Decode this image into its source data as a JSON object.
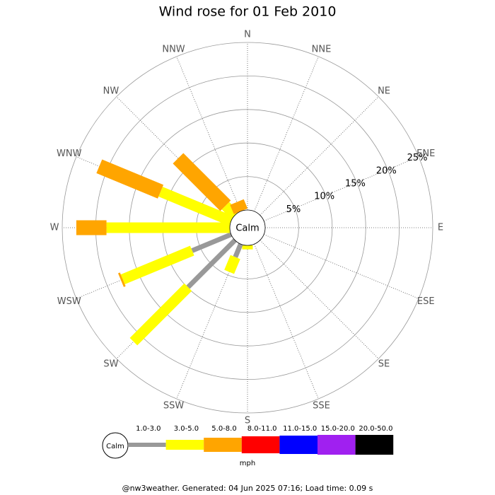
{
  "chart_data": {
    "type": "windrose",
    "title": "Wind rose for 01 Feb 2010",
    "categories": [
      "N",
      "NNE",
      "NE",
      "ENE",
      "E",
      "ESE",
      "SE",
      "SSE",
      "S",
      "SSW",
      "SW",
      "WSW",
      "W",
      "WNW",
      "NW",
      "NNW"
    ],
    "series": [
      {
        "name": "1.0-3.0",
        "color": "#999999",
        "values": [
          0,
          0,
          0,
          0,
          0,
          0,
          0,
          0,
          0,
          2.1,
          9.9,
          6.3,
          0,
          0,
          0,
          0
        ]
      },
      {
        "name": "3.0-5.0",
        "color": "#ffff00",
        "values": [
          0,
          0,
          0,
          0,
          0,
          0,
          0,
          0,
          0.6,
          2.4,
          11.5,
          11.2,
          18.4,
          11.4,
          2,
          0
        ]
      },
      {
        "name": "5.0-8.0",
        "color": "#ffa500",
        "values": [
          0,
          0,
          0,
          0,
          0,
          0,
          0,
          0,
          0,
          0,
          0,
          0.3,
          4.5,
          9.9,
          10,
          1.5
        ]
      },
      {
        "name": "8.0-11.0",
        "color": "#ff0000",
        "values": [
          0,
          0,
          0,
          0,
          0,
          0,
          0,
          0,
          0,
          0,
          0,
          0,
          0,
          0,
          0,
          0
        ]
      },
      {
        "name": "11.0-15.0",
        "color": "#0000ff",
        "values": [
          0,
          0,
          0,
          0,
          0,
          0,
          0,
          0,
          0,
          0,
          0,
          0,
          0,
          0,
          0,
          0
        ]
      },
      {
        "name": "15.0-20.0",
        "color": "#a020f0",
        "values": [
          0,
          0,
          0,
          0,
          0,
          0,
          0,
          0,
          0,
          0,
          0,
          0,
          0,
          0,
          0,
          0
        ]
      },
      {
        "name": "20.0-50.0",
        "color": "#000000",
        "values": [
          0,
          0,
          0,
          0,
          0,
          0,
          0,
          0,
          0,
          0,
          0,
          0,
          0,
          0,
          0,
          0
        ]
      }
    ],
    "rlim": [
      0,
      25
    ],
    "rticks": [
      {
        "value": 5,
        "label": "5%"
      },
      {
        "value": 10,
        "label": "10%"
      },
      {
        "value": 15,
        "label": "15%"
      },
      {
        "value": 20,
        "label": "20%"
      },
      {
        "value": 25,
        "label": "25%"
      }
    ],
    "center_label": "Calm",
    "legend_unit": "mph",
    "footer": "@nw3weather. Generated: 04 Jun 2025 07:16; Load time: 0.09 s"
  }
}
